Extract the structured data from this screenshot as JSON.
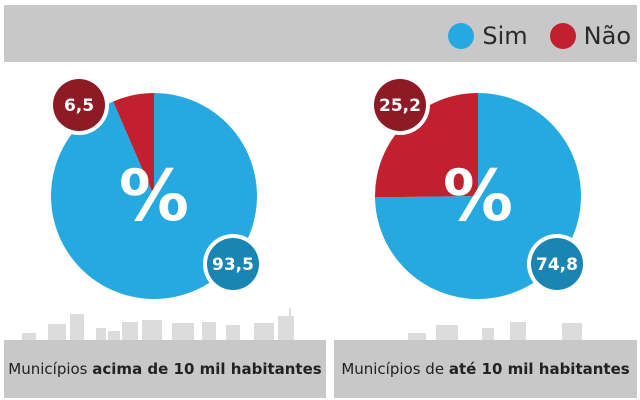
{
  "legend": {
    "items": [
      {
        "label": "Sim",
        "color": "#26a9e0"
      },
      {
        "label": "Não",
        "color": "#c1202f"
      }
    ]
  },
  "chart_data": [
    {
      "type": "pie",
      "center_label": "%",
      "slices": [
        {
          "name": "Sim",
          "value": 93.5,
          "label": "93,5",
          "color": "#26a9e0",
          "badge_color": "#1a85b3"
        },
        {
          "name": "Não",
          "value": 6.5,
          "label": "6,5",
          "color": "#c1202f",
          "badge_color": "#8e1a26"
        }
      ],
      "caption_normal": "Municípios ",
      "caption_bold": "acima de 10 mil habitantes"
    },
    {
      "type": "pie",
      "center_label": "%",
      "slices": [
        {
          "name": "Sim",
          "value": 74.8,
          "label": "74,8",
          "color": "#26a9e0",
          "badge_color": "#1a85b3"
        },
        {
          "name": "Não",
          "value": 25.2,
          "label": "25,2",
          "color": "#c1202f",
          "badge_color": "#8e1a26"
        }
      ],
      "caption_normal": "Municípios de ",
      "caption_bold": "até 10 mil habitantes"
    }
  ]
}
